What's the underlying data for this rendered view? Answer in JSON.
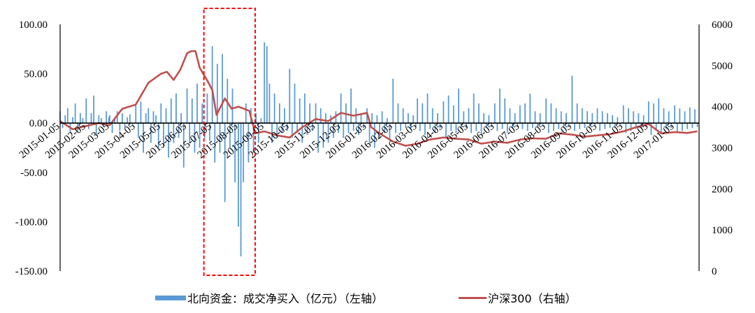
{
  "chart_data": {
    "type": "bar+line",
    "left_axis": {
      "ticks": [
        "100.00",
        "50.00",
        "0.00",
        "-50.00",
        "-100.00",
        "-150.00"
      ],
      "ylim": [
        -150,
        100
      ]
    },
    "right_axis": {
      "ticks": [
        "6000",
        "5000",
        "4000",
        "3000",
        "2000",
        "1000",
        "0"
      ],
      "ylim": [
        0,
        6000
      ]
    },
    "x_labels": [
      "2015-01-05",
      "2015-02-05",
      "2015-03-05",
      "2015-04-05",
      "2015-05-05",
      "2015-06-05",
      "2015-07-05",
      "2015-08-05",
      "2015-09-05",
      "2015-10-05",
      "2015-11-05",
      "2015-12-05",
      "2016-01-05",
      "2016-02-05",
      "2016-03-05",
      "2016-04-05",
      "2016-05-05",
      "2016-06-05",
      "2016-07-05",
      "2016-08-05",
      "2016-09-05",
      "2016-10-05",
      "2016-11-05",
      "2016-12-05",
      "2017-01-05"
    ],
    "series": [
      {
        "name": "北向资金：成交净买入（亿元）（左轴）",
        "type": "bar",
        "axis": "left",
        "color": "#5b9bd5",
        "monthly_approx": [
          {
            "month": "2015-01",
            "values": [
              12,
              -5,
              8,
              15,
              -10,
              6,
              20,
              -8,
              10,
              5
            ]
          },
          {
            "month": "2015-02",
            "values": [
              25,
              -6,
              10,
              28,
              -12,
              8,
              5,
              -4,
              12,
              6
            ]
          },
          {
            "month": "2015-03",
            "values": [
              8,
              -10,
              5,
              12,
              -8,
              10,
              -5,
              6,
              9,
              -3
            ]
          },
          {
            "month": "2015-04",
            "values": [
              18,
              -15,
              22,
              -30,
              10,
              15,
              -20,
              12,
              8,
              -25
            ]
          },
          {
            "month": "2015-05",
            "values": [
              20,
              -25,
              15,
              -35,
              25,
              -20,
              30,
              -15,
              10,
              -45
            ]
          },
          {
            "month": "2015-06",
            "values": [
              35,
              -20,
              25,
              -30,
              40,
              -25,
              20,
              -15,
              30,
              -18
            ]
          },
          {
            "month": "2015-07",
            "values": [
              78,
              -40,
              60,
              -30,
              70,
              -80,
              45,
              -25,
              35,
              -60
            ]
          },
          {
            "month": "2015-08",
            "values": [
              -105,
              -135,
              -60,
              20,
              -40,
              15,
              -30,
              10,
              -20,
              5
            ]
          },
          {
            "month": "2015-09",
            "values": [
              82,
              78,
              40,
              -20,
              30,
              -15,
              20,
              -10,
              15,
              -8
            ]
          },
          {
            "month": "2015-10",
            "values": [
              55,
              -15,
              40,
              -10,
              25,
              -20,
              30,
              -12,
              20,
              -8
            ]
          },
          {
            "month": "2015-11",
            "values": [
              20,
              -30,
              15,
              -25,
              10,
              -20,
              8,
              -15,
              12,
              -10
            ]
          },
          {
            "month": "2015-12",
            "values": [
              30,
              -15,
              20,
              -10,
              35,
              -8,
              15,
              -12,
              10,
              -5
            ]
          },
          {
            "month": "2016-01",
            "values": [
              15,
              -20,
              10,
              -25,
              8,
              -15,
              12,
              -10,
              5,
              -18
            ]
          },
          {
            "month": "2016-02",
            "values": [
              45,
              -10,
              20,
              -8,
              15,
              -5,
              10,
              -6,
              8,
              -4
            ]
          },
          {
            "month": "2016-03",
            "values": [
              25,
              -8,
              20,
              -12,
              30,
              -6,
              15,
              -10,
              10,
              -5
            ]
          },
          {
            "month": "2016-04",
            "values": [
              22,
              -15,
              28,
              -8,
              18,
              -10,
              35,
              -6,
              12,
              -5
            ]
          },
          {
            "month": "2016-05",
            "values": [
              15,
              -10,
              30,
              -8,
              20,
              -12,
              10,
              -5,
              8,
              -4
            ]
          },
          {
            "month": "2016-06",
            "values": [
              20,
              -8,
              35,
              -6,
              25,
              -10,
              15,
              -5,
              10,
              -4
            ]
          },
          {
            "month": "2016-07",
            "values": [
              18,
              -6,
              20,
              -8,
              30,
              -5,
              12,
              -4,
              10,
              -3
            ]
          },
          {
            "month": "2016-08",
            "values": [
              25,
              -10,
              20,
              -8,
              15,
              -6,
              12,
              -5,
              10,
              -4
            ]
          },
          {
            "month": "2016-09",
            "values": [
              48,
              -8,
              20,
              -6,
              15,
              -5,
              12,
              -4,
              10,
              -3
            ]
          },
          {
            "month": "2016-10",
            "values": [
              15,
              -8,
              12,
              -6,
              10,
              -5,
              8,
              -4,
              6,
              -3
            ]
          },
          {
            "month": "2016-11",
            "values": [
              18,
              -10,
              15,
              -8,
              12,
              -6,
              10,
              -5,
              8,
              -4
            ]
          },
          {
            "month": "2016-12",
            "values": [
              22,
              -12,
              20,
              -8,
              25,
              -10,
              15,
              -6,
              12,
              -5
            ]
          },
          {
            "month": "2017-01",
            "values": [
              18,
              -10,
              15,
              -8,
              12,
              -6,
              16,
              -5,
              14,
              -4
            ]
          }
        ]
      },
      {
        "name": "沪深300（右轴）",
        "type": "line",
        "axis": "right",
        "color": "#c0504d",
        "points": [
          [
            "2015-01-05",
            3650
          ],
          [
            "2015-01-20",
            3450
          ],
          [
            "2015-02-05",
            3530
          ],
          [
            "2015-02-20",
            3600
          ],
          [
            "2015-03-05",
            3550
          ],
          [
            "2015-03-20",
            3950
          ],
          [
            "2015-04-05",
            4050
          ],
          [
            "2015-04-20",
            4580
          ],
          [
            "2015-05-05",
            4800
          ],
          [
            "2015-05-12",
            4850
          ],
          [
            "2015-05-20",
            4650
          ],
          [
            "2015-05-28",
            4900
          ],
          [
            "2015-06-05",
            5300
          ],
          [
            "2015-06-10",
            5350
          ],
          [
            "2015-06-15",
            5350
          ],
          [
            "2015-06-20",
            4950
          ],
          [
            "2015-06-30",
            4600
          ],
          [
            "2015-07-05",
            4400
          ],
          [
            "2015-07-10",
            3800
          ],
          [
            "2015-07-20",
            4200
          ],
          [
            "2015-07-28",
            3950
          ],
          [
            "2015-08-05",
            4000
          ],
          [
            "2015-08-18",
            3900
          ],
          [
            "2015-08-25",
            3350
          ],
          [
            "2015-09-05",
            3400
          ],
          [
            "2015-09-20",
            3300
          ],
          [
            "2015-10-05",
            3250
          ],
          [
            "2015-10-20",
            3500
          ],
          [
            "2015-11-05",
            3700
          ],
          [
            "2015-11-20",
            3650
          ],
          [
            "2015-12-05",
            3850
          ],
          [
            "2015-12-20",
            3780
          ],
          [
            "2016-01-05",
            3850
          ],
          [
            "2016-01-10",
            3500
          ],
          [
            "2016-01-20",
            3350
          ],
          [
            "2016-02-05",
            3150
          ],
          [
            "2016-02-20",
            3050
          ],
          [
            "2016-03-05",
            3100
          ],
          [
            "2016-03-20",
            3200
          ],
          [
            "2016-04-05",
            3250
          ],
          [
            "2016-04-20",
            3220
          ],
          [
            "2016-05-05",
            3200
          ],
          [
            "2016-05-20",
            3100
          ],
          [
            "2016-06-05",
            3150
          ],
          [
            "2016-06-20",
            3120
          ],
          [
            "2016-07-05",
            3200
          ],
          [
            "2016-07-20",
            3230
          ],
          [
            "2016-08-05",
            3220
          ],
          [
            "2016-08-20",
            3350
          ],
          [
            "2016-09-05",
            3320
          ],
          [
            "2016-09-20",
            3270
          ],
          [
            "2016-10-05",
            3300
          ],
          [
            "2016-10-20",
            3330
          ],
          [
            "2016-11-05",
            3400
          ],
          [
            "2016-11-20",
            3500
          ],
          [
            "2016-12-05",
            3580
          ],
          [
            "2016-12-20",
            3350
          ],
          [
            "2017-01-05",
            3380
          ],
          [
            "2017-01-20",
            3360
          ],
          [
            "2017-02-01",
            3400
          ]
        ]
      }
    ],
    "highlight": {
      "from": "2015-06-25",
      "to": "2015-08-25",
      "style": "dashed-red-box"
    }
  }
}
